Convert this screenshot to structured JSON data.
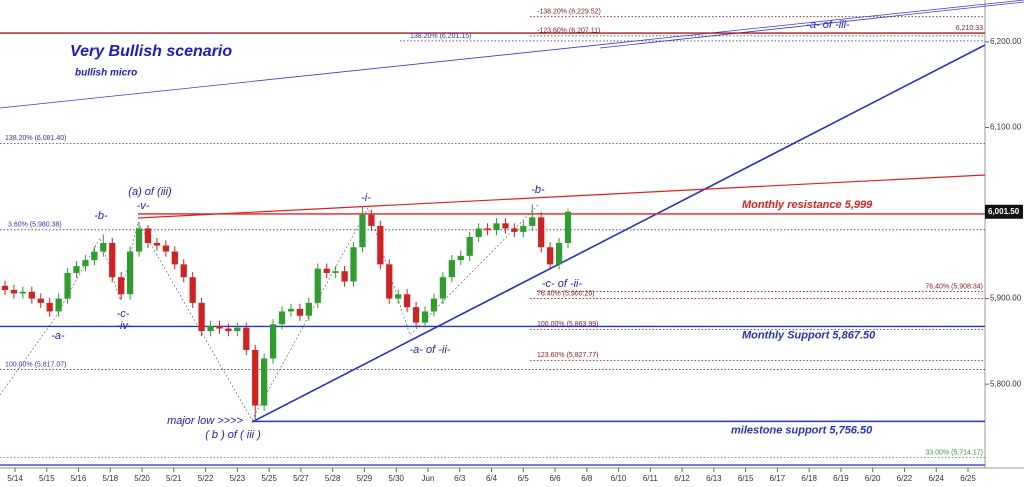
{
  "chart_data": {
    "type": "candlestick",
    "title": "Very Bullish scenario",
    "subtitle": "bullish micro",
    "categories": [
      "5/14",
      "5/15",
      "5/16",
      "5/18",
      "5/20",
      "5/21",
      "5/22",
      "5/23",
      "5/25",
      "5/27",
      "5/28",
      "5/29",
      "5/30",
      "Jun",
      "6/3",
      "6/4",
      "6/5",
      "6/6",
      "6/8",
      "6/10",
      "6/11",
      "6/12",
      "6/13",
      "6/15",
      "6/17",
      "6/18",
      "6/19",
      "6/20",
      "6/22",
      "6/24",
      "6/25"
    ],
    "ylim": [
      5702,
      6249
    ],
    "yticks": [
      {
        "value": 5800,
        "label": "5,800.00"
      },
      {
        "value": 5900,
        "label": "5,900.00"
      },
      {
        "value": 6100,
        "label": "6,100.00"
      },
      {
        "value": 6200,
        "label": "6,200.00"
      }
    ],
    "up_color": "#2e9e2e",
    "down_color": "#d32020",
    "candles": {
      "open": [
        5915,
        5910,
        5906,
        5908,
        5900,
        5895,
        5885,
        5900,
        5930,
        5938,
        5945,
        5955,
        5965,
        5925,
        5905,
        5955,
        5982,
        5965,
        5962,
        5955,
        5940,
        5925,
        5895,
        5862,
        5868,
        5865,
        5862,
        5866,
        5840,
        5775,
        5830,
        5870,
        5885,
        5888,
        5880,
        5895,
        5935,
        5930,
        5932,
        5920,
        5960,
        5998,
        5985,
        5940,
        5900,
        5905,
        5890,
        5872,
        5885,
        5900,
        5925,
        5945,
        5950,
        5972,
        5982,
        5980,
        5988,
        5982,
        5978,
        5985,
        5995,
        5960,
        5940,
        5965
      ],
      "high": [
        5921,
        5916,
        5914,
        5914,
        5906,
        5901,
        5906,
        5936,
        5944,
        5951,
        5961,
        5975,
        5971,
        5931,
        5961,
        5990,
        5986,
        5971,
        5968,
        5961,
        5946,
        5931,
        5901,
        5874,
        5874,
        5871,
        5872,
        5872,
        5846,
        5836,
        5876,
        5891,
        5894,
        5894,
        5901,
        5941,
        5941,
        5938,
        5938,
        5966,
        6008,
        6004,
        5991,
        5946,
        5911,
        5911,
        5896,
        5891,
        5906,
        5931,
        5951,
        5956,
        5978,
        5988,
        5988,
        5994,
        5994,
        5988,
        5991,
        6010,
        6001,
        5966,
        5971,
        6005
      ],
      "low": [
        5904,
        5900,
        5900,
        5894,
        5889,
        5879,
        5879,
        5894,
        5924,
        5932,
        5939,
        5949,
        5919,
        5899,
        5899,
        5949,
        5959,
        5956,
        5949,
        5934,
        5919,
        5889,
        5856,
        5856,
        5859,
        5856,
        5856,
        5834,
        5757,
        5769,
        5824,
        5864,
        5879,
        5874,
        5874,
        5889,
        5924,
        5924,
        5914,
        5914,
        5954,
        5979,
        5934,
        5894,
        5894,
        5884,
        5866,
        5866,
        5879,
        5894,
        5919,
        5939,
        5944,
        5966,
        5974,
        5974,
        5976,
        5972,
        5972,
        5979,
        5954,
        5934,
        5934,
        5959
      ],
      "close": [
        5910,
        5906,
        5908,
        5900,
        5895,
        5885,
        5900,
        5930,
        5938,
        5945,
        5955,
        5965,
        5925,
        5905,
        5955,
        5982,
        5965,
        5962,
        5955,
        5940,
        5925,
        5895,
        5862,
        5868,
        5865,
        5862,
        5866,
        5840,
        5775,
        5830,
        5870,
        5885,
        5888,
        5880,
        5895,
        5935,
        5930,
        5932,
        5920,
        5960,
        5998,
        5985,
        5940,
        5900,
        5905,
        5890,
        5872,
        5885,
        5900,
        5925,
        5945,
        5950,
        5972,
        5982,
        5980,
        5988,
        5982,
        5978,
        5985,
        5995,
        5960,
        5940,
        5965,
        6001.5
      ]
    },
    "last_price": {
      "value": 6001.5,
      "label": "6,001.50"
    },
    "levels": [
      {
        "value": 6229.52,
        "label": "-138.20% (6,229.52)",
        "color": "#8b1a1a",
        "style": "dotted"
      },
      {
        "value": 6207.11,
        "label": "-123.60% (6,207.11)",
        "color": "#8b1a1a",
        "style": "dotted"
      },
      {
        "value": 6210.33,
        "label": "6,210.33",
        "color": "#a01c1c",
        "style": "solid"
      },
      {
        "value": 6201.15,
        "label": "138.20% (6,201.15)",
        "color": "#3333cc",
        "style": "dotted"
      },
      {
        "value": 6081.4,
        "label": "138.20% (6,081.40)",
        "color": "#3333cc",
        "style": "dotted"
      },
      {
        "value": 5980.38,
        "label": "3.60% (5,980.38)",
        "color": "#3333cc",
        "style": "dotted"
      },
      {
        "value": 5908.34,
        "label": "76.40% (5,908.34)",
        "color": "#8b1a1a",
        "style": "dotted"
      },
      {
        "value": 5900.2,
        "label": "76.40% (5,900.20)",
        "color": "#8b1a1a",
        "style": "dotted"
      },
      {
        "value": 5863.99,
        "label": "100.00% (5,863.99)",
        "color": "#8b1a1a",
        "style": "dotted"
      },
      {
        "value": 5827.77,
        "label": "123.60% (5,827.77)",
        "color": "#8b1a1a",
        "style": "dotted"
      },
      {
        "value": 5817.07,
        "label": "100.00% (5,817.07)",
        "color": "#3333cc",
        "style": "dotted"
      },
      {
        "value": 5714.17,
        "label": "33.00% (5,714.17)",
        "color": "#2e9e2e",
        "style": "dotted"
      }
    ],
    "key_levels": [
      {
        "value": 5999,
        "label": "Monthly resistance 5,999",
        "color": "#e02020"
      },
      {
        "value": 5867.5,
        "label": "Monthly Support 5,867.50",
        "color": "#2233cc"
      },
      {
        "value": 5756.5,
        "label": "milestone support 5,756.50",
        "color": "#2233cc"
      }
    ],
    "annotations": [
      "(a) of (iii)",
      "-v-",
      "-b-",
      "-c-",
      "-iv-",
      "-a-",
      "-i-",
      "-a- of -ii-",
      "-b-",
      "-c- of -ii-",
      "major low >>>>",
      "( b ) of ( iii )",
      "-a- of -iii-"
    ]
  }
}
